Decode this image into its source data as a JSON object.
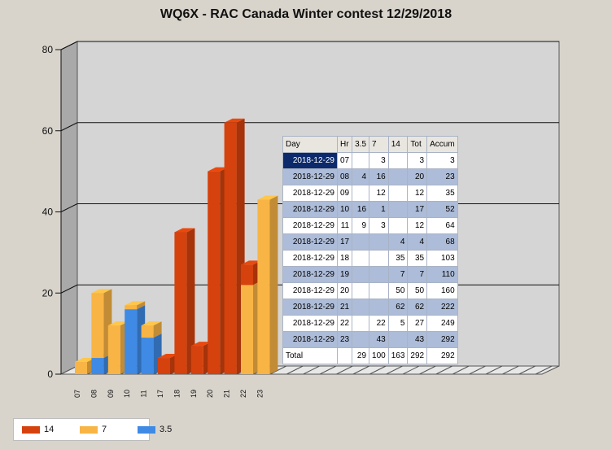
{
  "chart_data": {
    "type": "bar",
    "stacked": true,
    "three_d": true,
    "title": "WQ6X - RAC Canada Winter contest 12/29/2018",
    "categories": [
      "07",
      "08",
      "09",
      "10",
      "11",
      "17",
      "18",
      "19",
      "20",
      "21",
      "22",
      "23"
    ],
    "series": [
      {
        "name": "3.5",
        "color": "#3f8ae4",
        "values": [
          0,
          4,
          0,
          16,
          9,
          0,
          0,
          0,
          0,
          0,
          0,
          0
        ]
      },
      {
        "name": "7",
        "color": "#f8b444",
        "values": [
          3,
          16,
          12,
          1,
          3,
          0,
          0,
          0,
          0,
          0,
          22,
          43
        ]
      },
      {
        "name": "14",
        "color": "#d5420d",
        "values": [
          0,
          0,
          0,
          0,
          0,
          4,
          35,
          7,
          50,
          62,
          5,
          0
        ]
      }
    ],
    "ylim": [
      0,
      80
    ],
    "yticks": [
      "0",
      "20",
      "40",
      "60",
      "80"
    ],
    "grid": true,
    "legend_position": "bottom-left",
    "legend_order": [
      "14",
      "7",
      "3.5"
    ]
  },
  "table": {
    "headers": [
      "Day",
      "Hr",
      "3.5",
      "7",
      "14",
      "Tot",
      "Accum"
    ],
    "rows": [
      [
        "2018-12-29",
        "07",
        "",
        "3",
        "",
        "3",
        "3"
      ],
      [
        "2018-12-29",
        "08",
        "4",
        "16",
        "",
        "20",
        "23"
      ],
      [
        "2018-12-29",
        "09",
        "",
        "12",
        "",
        "12",
        "35"
      ],
      [
        "2018-12-29",
        "10",
        "16",
        "1",
        "",
        "17",
        "52"
      ],
      [
        "2018-12-29",
        "11",
        "9",
        "3",
        "",
        "12",
        "64"
      ],
      [
        "2018-12-29",
        "17",
        "",
        "",
        "4",
        "4",
        "68"
      ],
      [
        "2018-12-29",
        "18",
        "",
        "",
        "35",
        "35",
        "103"
      ],
      [
        "2018-12-29",
        "19",
        "",
        "",
        "7",
        "7",
        "110"
      ],
      [
        "2018-12-29",
        "20",
        "",
        "",
        "50",
        "50",
        "160"
      ],
      [
        "2018-12-29",
        "21",
        "",
        "",
        "62",
        "62",
        "222"
      ],
      [
        "2018-12-29",
        "22",
        "",
        "22",
        "5",
        "27",
        "249"
      ],
      [
        "2018-12-29",
        "23",
        "",
        "43",
        "",
        "43",
        "292"
      ]
    ],
    "total": [
      "Total",
      "",
      "29",
      "100",
      "163",
      "292",
      "292"
    ]
  }
}
